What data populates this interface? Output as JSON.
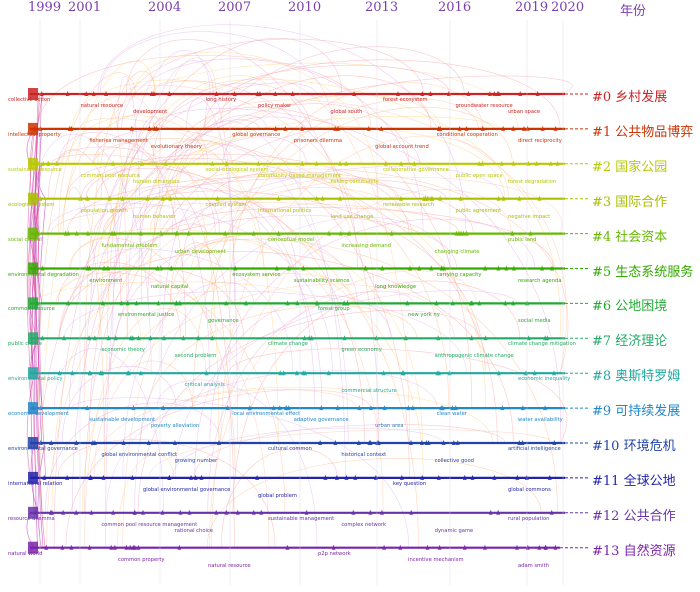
{
  "years": [
    "1999",
    "2001",
    "2004",
    "2007",
    "2010",
    "2013",
    "2016",
    "2019",
    "2020",
    "年份"
  ],
  "clusters": [
    {
      "id": "#0 乡村发展",
      "color": "#cc2222"
    },
    {
      "id": "#1 公共物品博弈",
      "color": "#cc3300"
    },
    {
      "id": "#2 国家公园",
      "color": "#b8c800"
    },
    {
      "id": "#3 国际合作",
      "color": "#a8c000"
    },
    {
      "id": "#4 社会资本",
      "color": "#66b800"
    },
    {
      "id": "#5 生态系统服务",
      "color": "#33aa00"
    },
    {
      "id": "#6 公地困境",
      "color": "#22aa33"
    },
    {
      "id": "#7 经济理论",
      "color": "#22aa66"
    },
    {
      "id": "#8 奥斯特罗姆",
      "color": "#22a8a0"
    },
    {
      "id": "#9 可持续发展",
      "color": "#2288c8"
    },
    {
      "id": "#10 环境危机",
      "color": "#2244aa"
    },
    {
      "id": "#11 全球公地",
      "color": "#2222aa"
    },
    {
      "id": "#12 公共合作",
      "color": "#6633aa"
    },
    {
      "id": "#13 自然资源",
      "color": "#7a22aa"
    }
  ],
  "terms": [
    [
      "collective action",
      "natural resource",
      "development",
      "long history",
      "policy maker",
      "global south",
      "forest ecosystem",
      "groundwater resource",
      "urban space"
    ],
    [
      "intellectual property",
      "fisheries management",
      "evolutionary theory",
      "global governance",
      "prisoners dilemma",
      "global account trend",
      "conditional cooperation",
      "direct reciprocity"
    ],
    [
      "sustainable resource",
      "common pool resource",
      "human dimension",
      "social-ecological system",
      "community-based management",
      "fishing community",
      "collaborative governance",
      "public open space",
      "forest degradation"
    ],
    [
      "ecological system",
      "population growth",
      "human behavior",
      "coupled system",
      "international politics",
      "land use change",
      "renewable research",
      "public agreement",
      "negative impact"
    ],
    [
      "social capital",
      "fundamental problem",
      "urban development",
      "conceptual model",
      "increasing demand",
      "changing climate",
      "public land"
    ],
    [
      "environmental degradation",
      "environment",
      "natural capital",
      "ecosystem service",
      "sustainability science",
      "long knowledge",
      "carrying capacity",
      "research agenda"
    ],
    [
      "common resource",
      "environmental justice",
      "governance",
      "forest group",
      "new york ny",
      "social media"
    ],
    [
      "public choice",
      "economic theory",
      "second problem",
      "climate change",
      "green economy",
      "anthropogenic climate change",
      "climate change mitigation"
    ],
    [
      "environmental policy",
      "critical analysis",
      "commercial structure",
      "economic inequality"
    ],
    [
      "economic development",
      "sustainable development",
      "poverty alleviation",
      "local environmental effect",
      "adaptive governance",
      "urban area",
      "clean water",
      "water availability"
    ],
    [
      "environmental governance",
      "global environmental conflict",
      "growing number",
      "cultural common",
      "historical context",
      "collective good",
      "artificial intelligence"
    ],
    [
      "international relation",
      "global environmental governance",
      "global problem",
      "key question",
      "global commons"
    ],
    [
      "resource dilemma",
      "common pool resource management",
      "rational choice",
      "sustainable management",
      "complex network",
      "dynamic game",
      "rural population"
    ],
    [
      "natural world",
      "common property",
      "natural resource",
      "p2p network",
      "incentive mechanism",
      "adam smith"
    ]
  ]
}
